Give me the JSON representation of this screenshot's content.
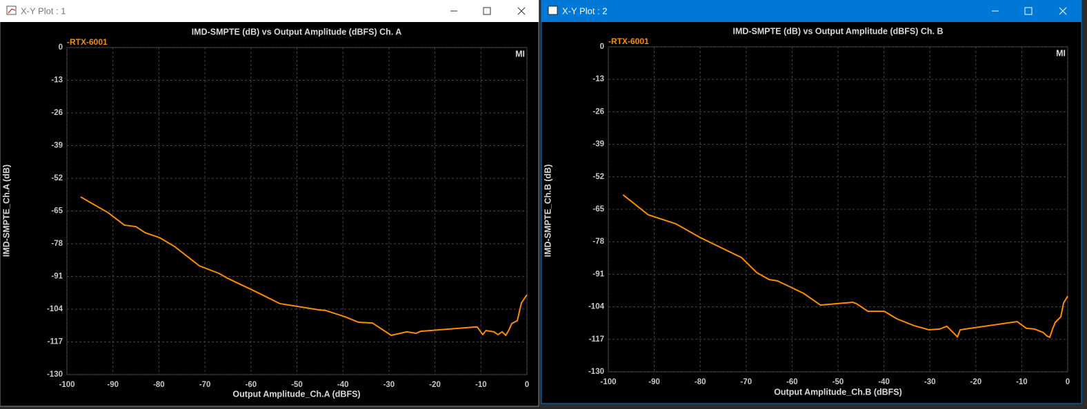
{
  "windows": [
    {
      "title": "X-Y Plot : 1"
    },
    {
      "title": "X-Y Plot : 2"
    }
  ],
  "chart_data": [
    {
      "type": "line",
      "title": "IMD-SMPTE (dB) vs Output Amplitude (dBFS) Ch. A",
      "logo": "MI",
      "x_label": "Output Amplitude_Ch.A (dBFS)",
      "y_label": "IMD-SMPTE_Ch.A (dB)",
      "xlim": [
        -100,
        0
      ],
      "ylim": [
        -130,
        0
      ],
      "xticks": [
        -100,
        -90,
        -80,
        -70,
        -60,
        -50,
        -40,
        -30,
        -20,
        -10,
        0
      ],
      "yticks": [
        0,
        -13,
        -26,
        -39,
        -52,
        -65,
        -78,
        -91,
        -104,
        -117,
        -130
      ],
      "grid": true,
      "x": [
        -97,
        -91,
        -87.5,
        -85,
        -83,
        -79.8,
        -76.6,
        -71.2,
        -66.9,
        -65.1,
        -59.1,
        -53.7,
        -45.1,
        -43.8,
        -39.6,
        -36.6,
        -33.6,
        -29.5,
        -26.1,
        -24.1,
        -23.1,
        -11.4,
        -10.8,
        -9.6,
        -8.9,
        -7.2,
        -6.3,
        -5.4,
        -4.6,
        -3.9,
        -3.3,
        -2.1,
        -1.2,
        -0.6,
        0
      ],
      "series": [
        {
          "name": "-RTX-6001",
          "color": "#ff8c00",
          "values": [
            -59.4,
            -65.7,
            -70.6,
            -71.2,
            -73.6,
            -75.6,
            -79.1,
            -86.8,
            -89.8,
            -91.7,
            -96.9,
            -101.8,
            -104.3,
            -104.5,
            -107,
            -109.2,
            -109.5,
            -114.4,
            -113,
            -113.6,
            -112.8,
            -111.1,
            -111.1,
            -114.1,
            -112.5,
            -113,
            -114.1,
            -113,
            -114.4,
            -112.2,
            -109.7,
            -108.6,
            -101.5,
            -99.9,
            -98.3
          ]
        }
      ]
    },
    {
      "type": "line",
      "title": "IMD-SMPTE (dB) vs Output Amplitude (dBFS) Ch. B",
      "logo": "MI",
      "x_label": "Output Amplitude_Ch.B (dBFS)",
      "y_label": "IMD-SMPTE_Ch.B (dB)",
      "xlim": [
        -100,
        0
      ],
      "ylim": [
        -130,
        0
      ],
      "xticks": [
        -100,
        -90,
        -80,
        -70,
        -60,
        -50,
        -40,
        -30,
        -20,
        -10,
        0
      ],
      "yticks": [
        0,
        -13,
        -26,
        -39,
        -52,
        -65,
        -78,
        -91,
        -104,
        -117,
        -130
      ],
      "grid": true,
      "x": [
        -96.8,
        -91.3,
        -85.3,
        -80,
        -71,
        -67.7,
        -65,
        -63.2,
        -57.5,
        -53.8,
        -46.8,
        -46,
        -43.5,
        -39.9,
        -37.2,
        -33.5,
        -30.2,
        -27.9,
        -26.3,
        -24,
        -23.4,
        -11,
        -9,
        -7.2,
        -5.3,
        -4.5,
        -3.9,
        -3.3,
        -2.7,
        -1.5,
        -0.9,
        0
      ],
      "series": [
        {
          "name": "-RTX-6001",
          "color": "#ff8c00",
          "values": [
            -59.2,
            -67.2,
            -70.8,
            -76.3,
            -84.3,
            -90.3,
            -93.1,
            -93.6,
            -98.6,
            -103.3,
            -102.2,
            -102.7,
            -105.8,
            -105.8,
            -108.8,
            -111.5,
            -113.2,
            -112.9,
            -111.8,
            -116,
            -113.2,
            -109.9,
            -112.6,
            -112.9,
            -114.3,
            -115.7,
            -116.2,
            -112.9,
            -110.2,
            -108,
            -102.5,
            -99.7
          ]
        }
      ]
    }
  ]
}
